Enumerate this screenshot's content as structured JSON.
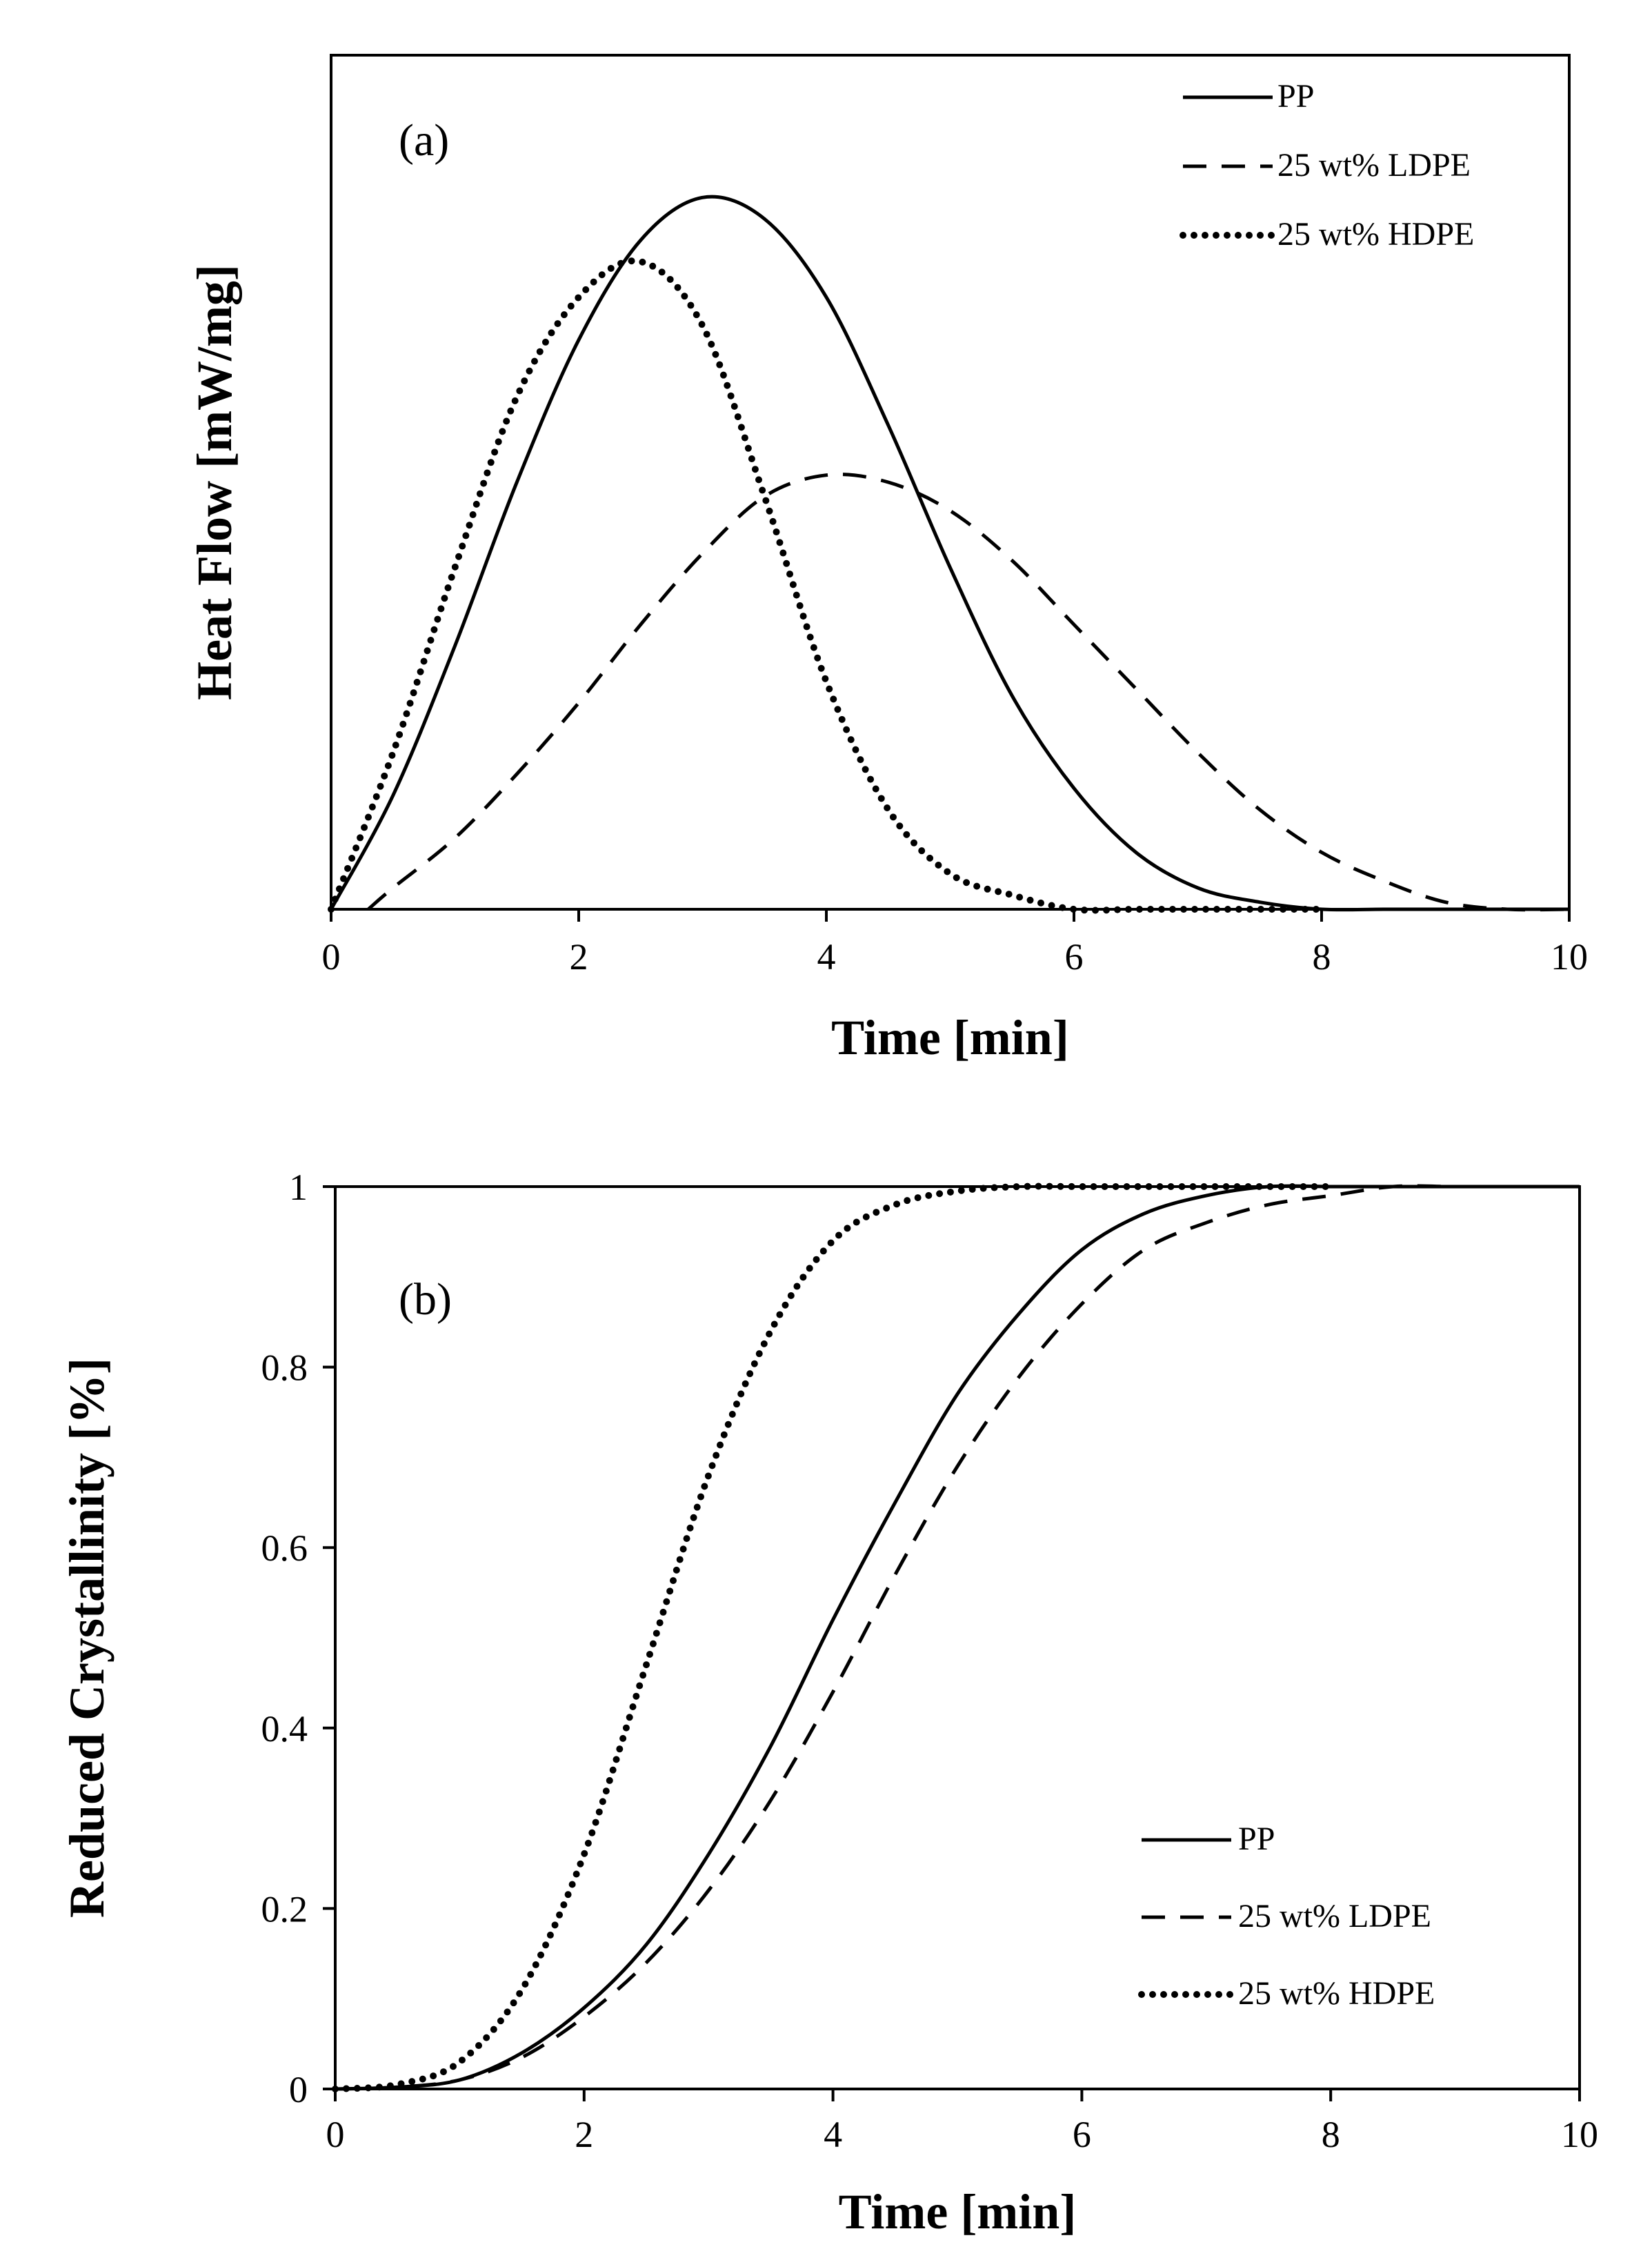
{
  "chart_data": [
    {
      "type": "line",
      "panel_label": "(a)",
      "title": "",
      "xlabel": "Time [min]",
      "ylabel": "Heat Flow [mW/mg]",
      "xlim": [
        0,
        10
      ],
      "ylim": [
        0,
        1.2
      ],
      "xticks": [
        "0",
        "2",
        "4",
        "6",
        "8",
        "10"
      ],
      "yticks": [],
      "grid": false,
      "legend_position": "top-right",
      "series": [
        {
          "name": "PP",
          "style": "solid",
          "x": [
            0,
            0.5,
            1,
            1.5,
            2,
            2.5,
            3,
            3.5,
            4,
            4.5,
            5,
            5.5,
            6,
            6.5,
            7,
            7.5,
            8,
            8.5,
            9,
            9.5,
            10
          ],
          "y": [
            0,
            0.16,
            0.37,
            0.6,
            0.8,
            0.94,
            1.0,
            0.97,
            0.86,
            0.68,
            0.48,
            0.3,
            0.17,
            0.08,
            0.03,
            0.01,
            0.0,
            0.0,
            0.0,
            0.0,
            0.0
          ]
        },
        {
          "name": "25 wt% LDPE",
          "style": "dashed",
          "x": [
            0.3,
            0.5,
            1,
            1.5,
            2,
            2.5,
            3,
            3.5,
            4,
            4.5,
            5,
            5.5,
            6,
            6.5,
            7,
            7.5,
            8,
            8.5,
            9,
            9.5,
            10
          ],
          "y": [
            0,
            0.03,
            0.1,
            0.19,
            0.29,
            0.4,
            0.5,
            0.58,
            0.61,
            0.6,
            0.56,
            0.49,
            0.4,
            0.31,
            0.22,
            0.14,
            0.08,
            0.04,
            0.01,
            0.0,
            0.0
          ]
        },
        {
          "name": "25 wt% HDPE",
          "style": "dotted",
          "x": [
            0,
            0.5,
            1,
            1.5,
            2,
            2.5,
            3,
            3.5,
            4,
            4.5,
            5,
            5.5,
            6,
            6.5,
            7,
            7.5,
            8
          ],
          "y": [
            0,
            0.22,
            0.48,
            0.72,
            0.86,
            0.91,
            0.82,
            0.58,
            0.32,
            0.14,
            0.05,
            0.02,
            0.0,
            0.0,
            0.0,
            0.0,
            0.0
          ]
        }
      ]
    },
    {
      "type": "line",
      "panel_label": "(b)",
      "title": "",
      "xlabel": "Time [min]",
      "ylabel": "Reduced Crystallinity [%]",
      "xlim": [
        0,
        10
      ],
      "ylim": [
        0,
        1
      ],
      "xticks": [
        "0",
        "2",
        "4",
        "6",
        "8",
        "10"
      ],
      "yticks": [
        "0",
        "0.2",
        "0.4",
        "0.6",
        "0.8",
        "1"
      ],
      "grid": false,
      "legend_position": "bottom-right",
      "series": [
        {
          "name": "PP",
          "style": "solid",
          "x": [
            0,
            0.5,
            1,
            1.5,
            2,
            2.5,
            3,
            3.5,
            4,
            4.5,
            5,
            5.5,
            6,
            6.5,
            7,
            7.5,
            8,
            8.5,
            9,
            9.5,
            10
          ],
          "y": [
            0,
            0.002,
            0.01,
            0.04,
            0.09,
            0.16,
            0.26,
            0.38,
            0.52,
            0.65,
            0.77,
            0.86,
            0.93,
            0.97,
            0.99,
            1.0,
            1.0,
            1.0,
            1.0,
            1.0,
            1.0
          ]
        },
        {
          "name": "25 wt% LDPE",
          "style": "dashed",
          "x": [
            0,
            0.5,
            1,
            1.5,
            2,
            2.5,
            3,
            3.5,
            4,
            4.5,
            5,
            5.5,
            6,
            6.5,
            7,
            7.5,
            8,
            8.5,
            9,
            9.5,
            10
          ],
          "y": [
            0,
            0.002,
            0.01,
            0.035,
            0.08,
            0.14,
            0.22,
            0.32,
            0.44,
            0.57,
            0.69,
            0.79,
            0.87,
            0.93,
            0.96,
            0.98,
            0.99,
            1.0,
            1.0,
            1.0,
            1.0
          ]
        },
        {
          "name": "25 wt% HDPE",
          "style": "dotted",
          "x": [
            0,
            0.5,
            1,
            1.5,
            2,
            2.5,
            3,
            3.5,
            4,
            4.5,
            5,
            5.5,
            6,
            6.5,
            7,
            7.5,
            8
          ],
          "y": [
            0,
            0.005,
            0.03,
            0.11,
            0.26,
            0.47,
            0.68,
            0.84,
            0.94,
            0.98,
            0.995,
            1.0,
            1.0,
            1.0,
            1.0,
            1.0,
            1.0
          ]
        }
      ]
    }
  ]
}
